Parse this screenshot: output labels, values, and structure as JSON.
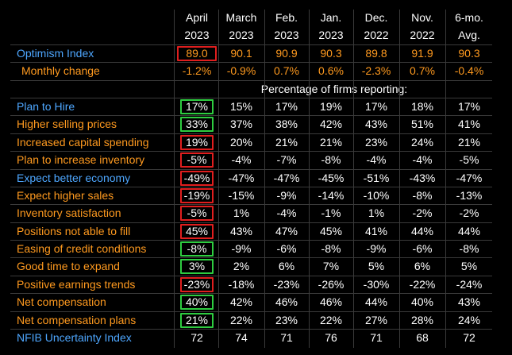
{
  "header": {
    "months": [
      "April",
      "March",
      "Feb.",
      "Jan.",
      "Dec.",
      "Nov.",
      "6-mo."
    ],
    "years": [
      "2023",
      "2023",
      "2023",
      "2023",
      "2022",
      "2022",
      "Avg."
    ]
  },
  "optimism": {
    "label": "Optimism Index",
    "values": [
      "89.0",
      "90.1",
      "90.9",
      "90.3",
      "89.8",
      "91.9",
      "90.3"
    ]
  },
  "monthly": {
    "label": "Monthly change",
    "values": [
      "-1.2%",
      "-0.9%",
      "0.7%",
      "0.6%",
      "-2.3%",
      "0.7%",
      "-0.4%"
    ]
  },
  "section_label": "Percentage of firms reporting:",
  "rows": [
    {
      "label": "Plan to Hire",
      "values": [
        "17%",
        "15%",
        "17%",
        "19%",
        "17%",
        "18%",
        "17%"
      ],
      "label_color": "blue",
      "box": "green"
    },
    {
      "label": "Higher selling prices",
      "values": [
        "33%",
        "37%",
        "38%",
        "42%",
        "43%",
        "51%",
        "41%"
      ],
      "label_color": "orange",
      "box": "green"
    },
    {
      "label": "Increased capital spending",
      "values": [
        "19%",
        "20%",
        "21%",
        "21%",
        "23%",
        "24%",
        "21%"
      ],
      "label_color": "orange",
      "box": "red"
    },
    {
      "label": "Plan to increase inventory",
      "values": [
        "-5%",
        "-4%",
        "-7%",
        "-8%",
        "-4%",
        "-4%",
        "-5%"
      ],
      "label_color": "orange",
      "box": "red"
    },
    {
      "label": "Expect better economy",
      "values": [
        "-49%",
        "-47%",
        "-47%",
        "-45%",
        "-51%",
        "-43%",
        "-47%"
      ],
      "label_color": "blue",
      "box": "red"
    },
    {
      "label": "Expect higher sales",
      "values": [
        "-19%",
        "-15%",
        "-9%",
        "-14%",
        "-10%",
        "-8%",
        "-13%"
      ],
      "label_color": "orange",
      "box": "red"
    },
    {
      "label": "Inventory satisfaction",
      "values": [
        "-5%",
        "1%",
        "-4%",
        "-1%",
        "1%",
        "-2%",
        "-2%"
      ],
      "label_color": "orange",
      "box": "red"
    },
    {
      "label": "Positions not able to fill",
      "values": [
        "45%",
        "43%",
        "47%",
        "45%",
        "41%",
        "44%",
        "44%"
      ],
      "label_color": "orange",
      "box": "red"
    },
    {
      "label": "Easing of credit conditions",
      "values": [
        "-8%",
        "-9%",
        "-6%",
        "-8%",
        "-9%",
        "-6%",
        "-8%"
      ],
      "label_color": "orange",
      "box": "green"
    },
    {
      "label": "Good time to expand",
      "values": [
        "3%",
        "2%",
        "6%",
        "7%",
        "5%",
        "6%",
        "5%"
      ],
      "label_color": "orange",
      "box": "green"
    },
    {
      "label": "Positive earnings trends",
      "values": [
        "-23%",
        "-18%",
        "-23%",
        "-26%",
        "-30%",
        "-22%",
        "-24%"
      ],
      "label_color": "orange",
      "box": "red"
    },
    {
      "label": "Net compensation",
      "values": [
        "40%",
        "42%",
        "46%",
        "46%",
        "44%",
        "40%",
        "43%"
      ],
      "label_color": "orange",
      "box": "green"
    },
    {
      "label": "Net compensation plans",
      "values": [
        "21%",
        "22%",
        "23%",
        "22%",
        "27%",
        "28%",
        "24%"
      ],
      "label_color": "orange",
      "box": "green"
    }
  ],
  "uncertainty": {
    "label": "NFIB Uncertainty Index",
    "values": [
      "72",
      "74",
      "71",
      "76",
      "71",
      "68",
      "72"
    ]
  },
  "colors": {
    "blue": "#4ea7ff",
    "orange": "#ff9a1f",
    "red_box": "#e01e1e",
    "green_box": "#2ecc40",
    "background": "#000000"
  }
}
